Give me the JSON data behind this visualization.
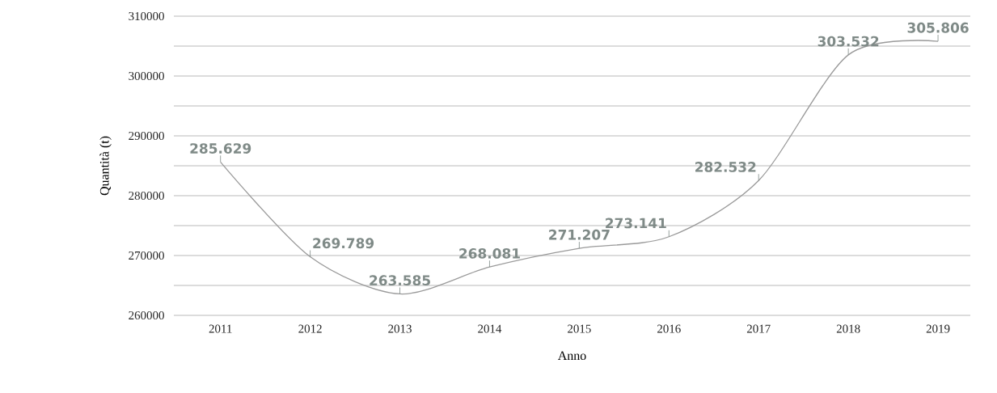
{
  "chart_data": {
    "type": "line",
    "xlabel": "Anno",
    "ylabel": "Quantità (t)",
    "categories": [
      "2011",
      "2012",
      "2013",
      "2014",
      "2015",
      "2016",
      "2017",
      "2018",
      "2019"
    ],
    "values": [
      285629,
      269789,
      263585,
      268081,
      271207,
      273141,
      282532,
      303532,
      305806
    ],
    "value_labels": [
      "285.629",
      "269.789",
      "263.585",
      "268.081",
      "271.207",
      "273.141",
      "282.532",
      "303.532",
      "305.806"
    ],
    "color": "#9a9a9a",
    "ylim": [
      260000,
      310000
    ],
    "yticks": [
      260000,
      {
        "value": 265000,
        "label": null
      },
      270000,
      {
        "value": 275000,
        "label": null
      },
      280000,
      {
        "value": 285000,
        "label": null
      },
      290000,
      {
        "value": 295000,
        "label": null
      },
      300000,
      {
        "value": 305000,
        "label": null
      },
      310000
    ],
    "grid": "y",
    "marker": "none",
    "line_style": "solid"
  }
}
